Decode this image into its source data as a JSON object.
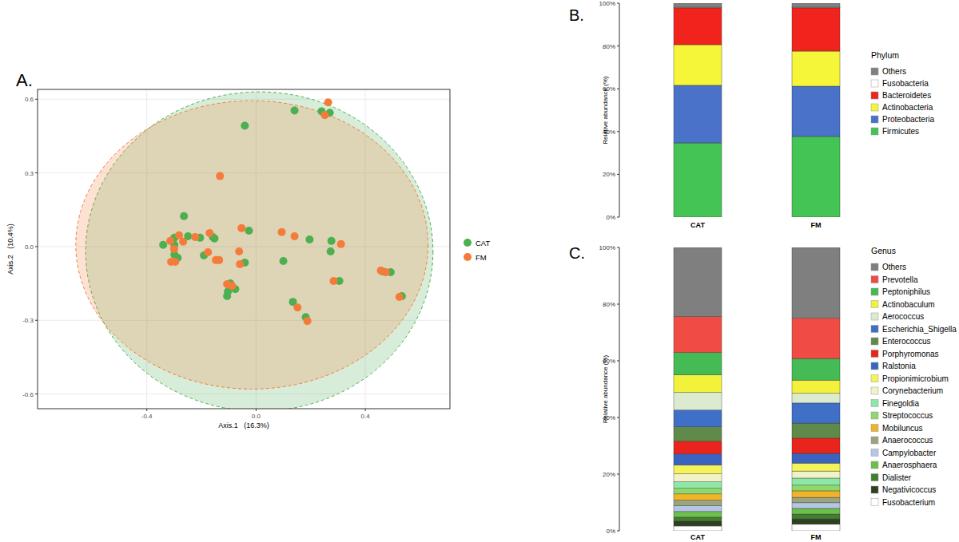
{
  "chart_data": [
    {
      "type": "scatter",
      "title": "A.",
      "x_label": "Axis.1   (16.3%)",
      "y_label": "Axis.2   (10.4%)",
      "xlim": [
        -0.8,
        0.71
      ],
      "ylim": [
        -0.66,
        0.64
      ],
      "xticks": [
        -0.4,
        {
          "value": 0,
          "label": "0.0"
        },
        0.4
      ],
      "yticks": [
        -0.6,
        -0.3,
        {
          "value": 0,
          "label": "0.0"
        },
        0.3,
        0.6
      ],
      "grid": true,
      "legend": "right",
      "series": [
        {
          "name": "CAT",
          "color": "#4caf50",
          "marker": "circle",
          "x": [
            0.141,
            -0.041,
            0.24,
            0.27,
            -0.264,
            -0.299,
            -0.34,
            -0.299,
            -0.249,
            -0.205,
            -0.158,
            -0.299,
            -0.287,
            -0.152,
            -0.191,
            -0.026,
            -0.041,
            -0.094,
            -0.103,
            -0.106,
            -0.076,
            0.1,
            0.135,
            0.182,
            0.196,
            0.276,
            0.273,
            0.305,
            0.463,
            0.493,
            0.534
          ],
          "values": [
            0.554,
            0.492,
            0.551,
            0.545,
            0.124,
            0.036,
            0.007,
            0.007,
            0.042,
            0.036,
            0.039,
            -0.033,
            -0.046,
            0.033,
            -0.036,
            0.065,
            -0.065,
            -0.15,
            -0.183,
            -0.202,
            -0.173,
            -0.059,
            -0.225,
            -0.287,
            0.029,
            0.023,
            -0.02,
            -0.14,
            -0.101,
            -0.104,
            -0.202
          ],
          "ellipse": {
            "cx": 0.012,
            "cy": -0.02,
            "rx": 0.636,
            "ry": 0.65
          }
        },
        {
          "name": "FM",
          "color": "#f47b3a",
          "marker": "circle",
          "x": [
            0.264,
            0.252,
            -0.132,
            -0.314,
            -0.282,
            -0.267,
            -0.223,
            -0.17,
            -0.311,
            -0.296,
            -0.176,
            -0.147,
            -0.053,
            -0.062,
            -0.059,
            -0.106,
            -0.088,
            0.094,
            0.141,
            0.152,
            0.188,
            0.311,
            0.284,
            0.457,
            0.475,
            0.525,
            -0.3,
            -0.135
          ],
          "values": [
            0.587,
            0.535,
            0.287,
            0.023,
            0.046,
            0.02,
            0.039,
            0.055,
            -0.062,
            -0.062,
            -0.023,
            -0.055,
            0.075,
            -0.02,
            -0.072,
            -0.153,
            -0.16,
            0.059,
            0.042,
            -0.248,
            -0.303,
            0.01,
            -0.14,
            -0.098,
            -0.104,
            -0.205,
            -0.01,
            -0.055
          ],
          "ellipse": {
            "cx": -0.015,
            "cy": 0.007,
            "rx": 0.645,
            "ry": 0.587
          }
        }
      ]
    },
    {
      "type": "bar",
      "stacked": true,
      "title": "B.",
      "y_label": "Relative abundance (%)",
      "legend_title": "Phylum",
      "legend": "right",
      "categories": [
        "CAT",
        "FM"
      ],
      "ylim": [
        0,
        100
      ],
      "yticks": [
        {
          "value": 0,
          "label": "0%"
        },
        {
          "value": 20,
          "label": "20%"
        },
        {
          "value": 40,
          "label": "40%"
        },
        {
          "value": 60,
          "label": "60%"
        },
        {
          "value": 80,
          "label": "80%"
        },
        {
          "value": 100,
          "label": "100%"
        }
      ],
      "series": [
        {
          "name": "Firmicutes",
          "color": "#45c456",
          "values": [
            34.7,
            37.7
          ]
        },
        {
          "name": "Proteobacteria",
          "color": "#4a72c8",
          "values": [
            26.9,
            23.5
          ]
        },
        {
          "name": "Actinobacteria",
          "color": "#f5f53a",
          "values": [
            19.0,
            16.4
          ]
        },
        {
          "name": "Bacteroidetes",
          "color": "#f0241d",
          "values": [
            17.2,
            20.2
          ]
        },
        {
          "name": "Fusobacteria",
          "color": "#ffffff",
          "values": [
            0.3,
            0.3
          ]
        },
        {
          "name": "Others",
          "color": "#808080",
          "values": [
            1.9,
            1.9
          ]
        }
      ]
    },
    {
      "type": "bar",
      "stacked": true,
      "title": "C.",
      "y_label": "Relative abundance (%)",
      "legend_title": "Genus",
      "legend": "right",
      "categories": [
        "CAT",
        "FM"
      ],
      "ylim": [
        0,
        100
      ],
      "yticks": [
        {
          "value": 0,
          "label": "0%"
        },
        {
          "value": 20,
          "label": "20%"
        },
        {
          "value": 40,
          "label": "40%"
        },
        {
          "value": 60,
          "label": "60%"
        },
        {
          "value": 80,
          "label": "80%"
        },
        {
          "value": 100,
          "label": "100%"
        }
      ],
      "series": [
        {
          "name": "Fusobacterium",
          "color": "#ffffff",
          "values": [
            1.7,
            2.3
          ]
        },
        {
          "name": "Negativicoccus",
          "color": "#2e3f22",
          "values": [
            1.7,
            1.9
          ]
        },
        {
          "name": "Dialister",
          "color": "#3f7f2e",
          "values": [
            1.4,
            1.7
          ]
        },
        {
          "name": "Anaerosphaera",
          "color": "#6cbf4a",
          "values": [
            2.0,
            2.0
          ]
        },
        {
          "name": "Campylobacter",
          "color": "#b4c6e6",
          "values": [
            2.0,
            2.0
          ]
        },
        {
          "name": "Anaerococcus",
          "color": "#9aa580",
          "values": [
            2.0,
            1.9
          ]
        },
        {
          "name": "Mobiluncus",
          "color": "#f0b429",
          "values": [
            2.2,
            2.3
          ]
        },
        {
          "name": "Streptococcus",
          "color": "#8fd86a",
          "values": [
            2.0,
            2.0
          ]
        },
        {
          "name": "Finegoldia",
          "color": "#8de8a8",
          "values": [
            2.3,
            2.5
          ]
        },
        {
          "name": "Corynebacterium",
          "color": "#f2f2c8",
          "values": [
            2.8,
            2.5
          ]
        },
        {
          "name": "Propionimicrobium",
          "color": "#f4f45a",
          "values": [
            3.1,
            2.8
          ]
        },
        {
          "name": "Ralstonia",
          "color": "#3a64bf",
          "values": [
            3.9,
            3.4
          ]
        },
        {
          "name": "Porphyromonas",
          "color": "#e8241c",
          "values": [
            4.5,
            5.4
          ]
        },
        {
          "name": "Enterococcus",
          "color": "#5f8a4a",
          "values": [
            5.1,
            5.3
          ]
        },
        {
          "name": "Escherichia_Shigella",
          "color": "#3f6fc6",
          "values": [
            5.9,
            7.1
          ]
        },
        {
          "name": "Aerococcus",
          "color": "#dcebd0",
          "values": [
            6.2,
            3.4
          ]
        },
        {
          "name": "Actinobaculum",
          "color": "#f2f23c",
          "values": [
            6.2,
            4.7
          ]
        },
        {
          "name": "Peptoniphilus",
          "color": "#44bb55",
          "values": [
            7.9,
            7.6
          ]
        },
        {
          "name": "Prevotella",
          "color": "#f04c44",
          "values": [
            12.7,
            14.2
          ]
        },
        {
          "name": "Others",
          "color": "#7f7f7f",
          "values": [
            24.4,
            25.0
          ]
        }
      ]
    }
  ]
}
